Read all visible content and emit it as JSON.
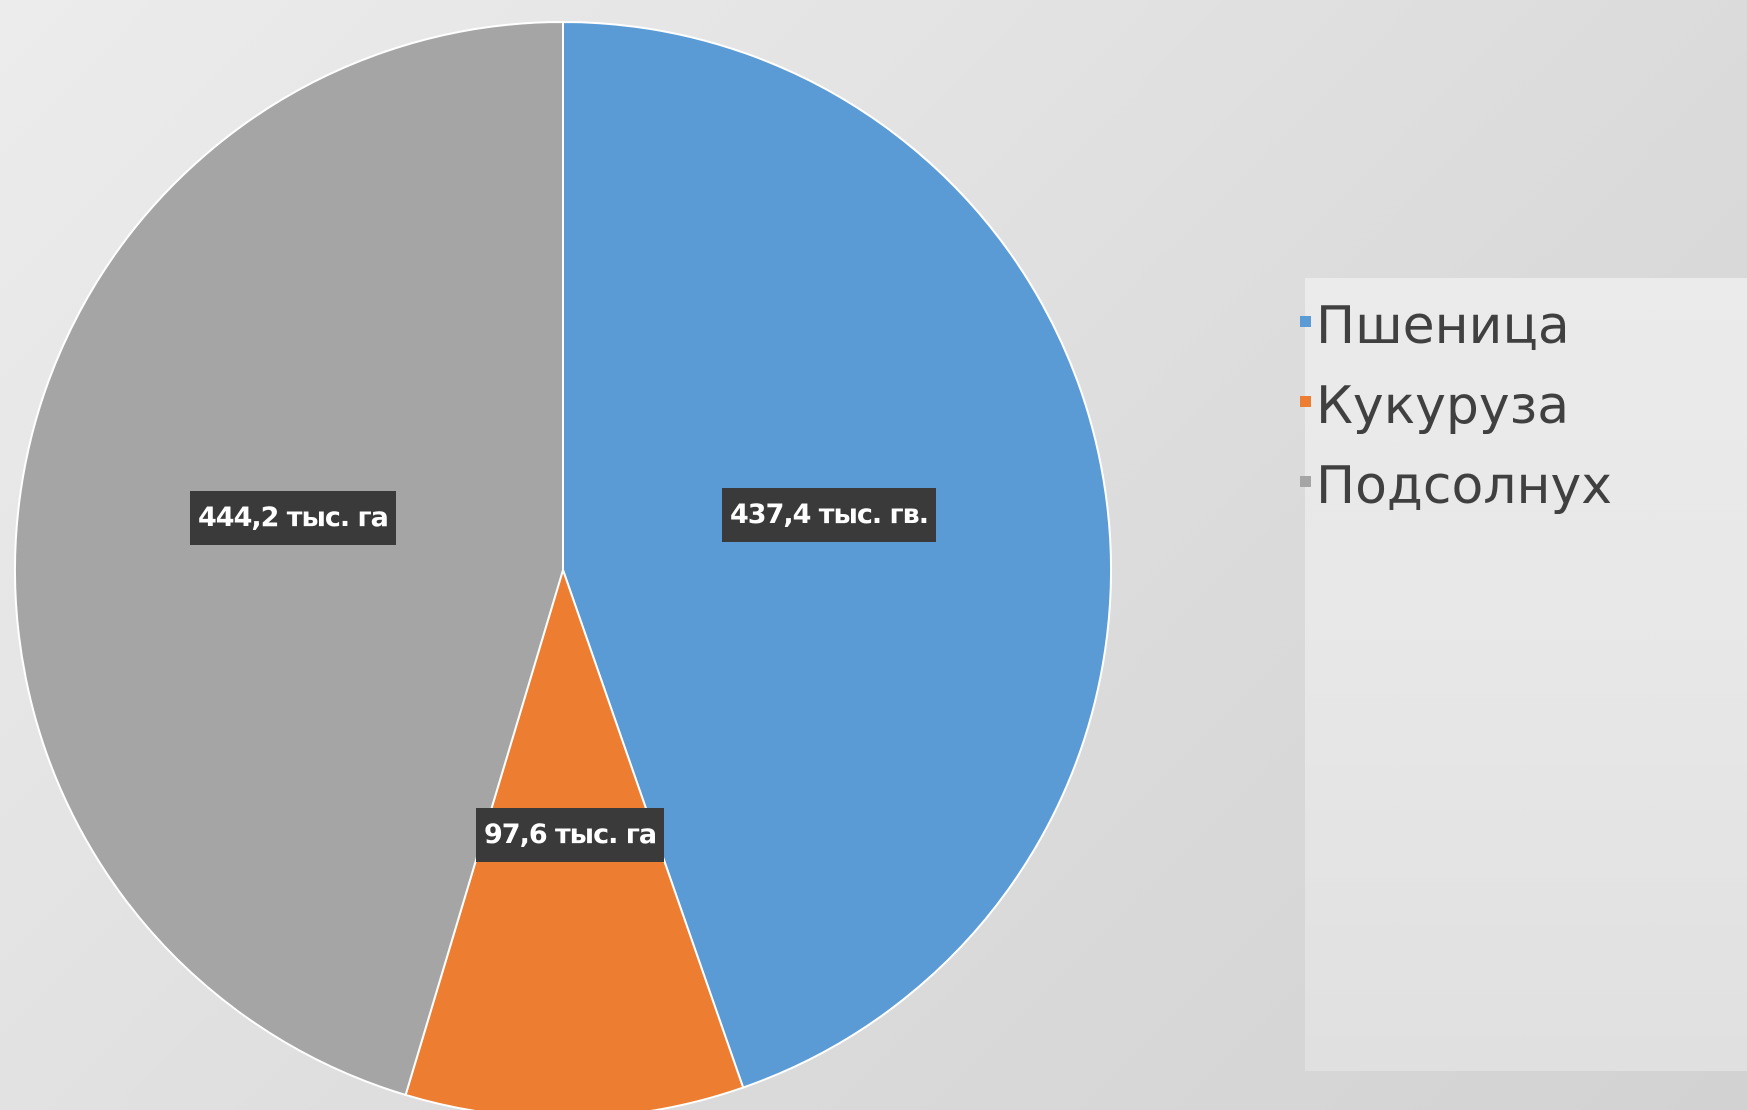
{
  "chart_data": {
    "type": "pie",
    "categories": [
      "Пшеница",
      "Кукуруза",
      "Подсолнух"
    ],
    "values": [
      437.4,
      97.6,
      444.2
    ],
    "data_labels": [
      "437,4 тыс. гв.",
      "97,6 тыс. га",
      "444,2 тыс. га"
    ],
    "colors": [
      "#5b9bd5",
      "#ed7d31",
      "#a5a5a5"
    ],
    "start_angle_deg": 0,
    "direction": "clockwise",
    "legend_position": "right"
  }
}
